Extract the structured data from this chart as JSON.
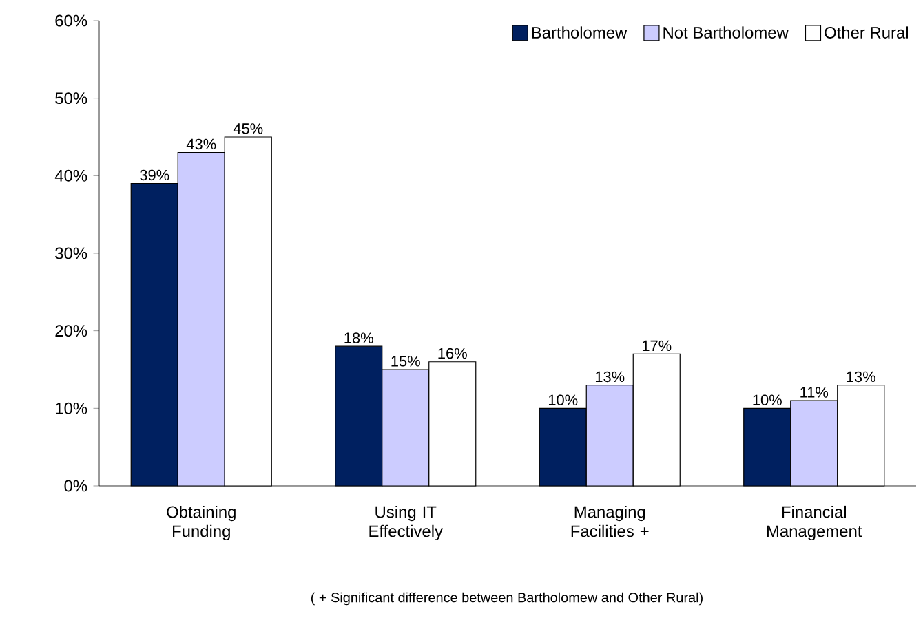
{
  "chart_data": {
    "type": "bar",
    "categories": [
      "Obtaining Funding",
      "Using IT Effectively",
      "Managing Facilities +",
      "Financial Management"
    ],
    "series": [
      {
        "name": "Bartholomew",
        "color": "#002060",
        "values": [
          39,
          18,
          10,
          10
        ],
        "value_labels": [
          "39%",
          "18%",
          "10%",
          "10%"
        ]
      },
      {
        "name": "Not Bartholomew",
        "color": "#ccccff",
        "values": [
          43,
          15,
          13,
          11
        ],
        "value_labels": [
          "43%",
          "15%",
          "13%",
          "11%"
        ]
      },
      {
        "name": "Other Rural",
        "color": "#ffffff",
        "values": [
          45,
          16,
          17,
          13
        ],
        "value_labels": [
          "45%",
          "16%",
          "17%",
          "13%"
        ]
      }
    ],
    "ylim": [
      0,
      60
    ],
    "yticks": [
      {
        "value": 0,
        "label": "0%"
      },
      {
        "value": 10,
        "label": "10%"
      },
      {
        "value": 20,
        "label": "20%"
      },
      {
        "value": 30,
        "label": "30%"
      },
      {
        "value": 40,
        "label": "40%"
      },
      {
        "value": 50,
        "label": "50%"
      },
      {
        "value": 60,
        "label": "60%"
      }
    ],
    "legend": "top right",
    "grid": false,
    "annotations": [
      "( + Significant difference between Bartholomew and Other Rural)"
    ]
  }
}
